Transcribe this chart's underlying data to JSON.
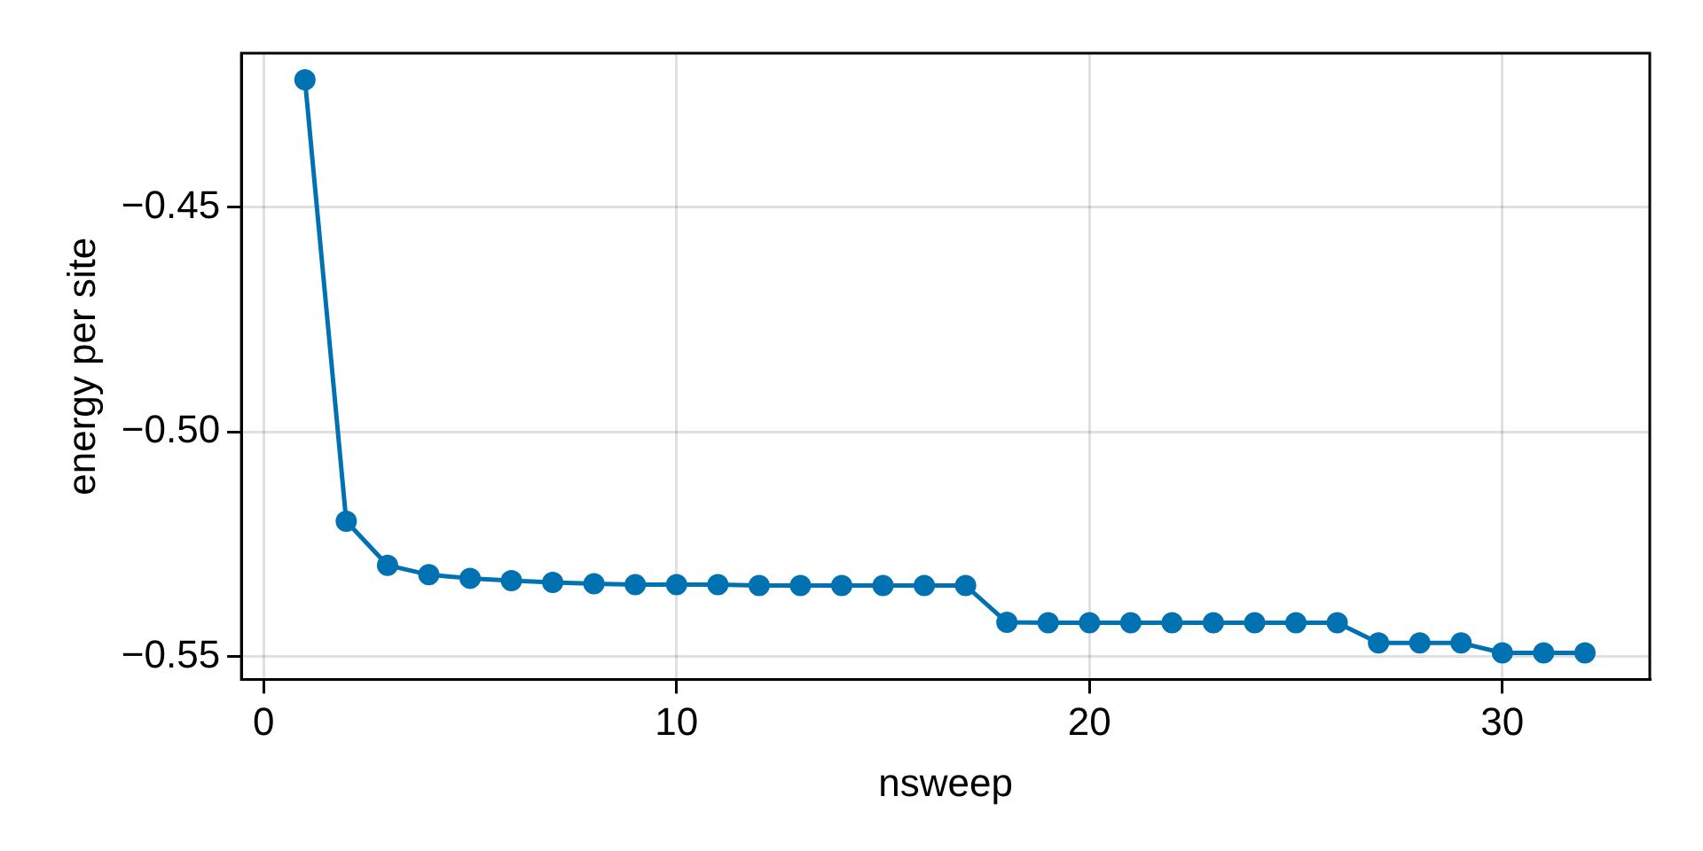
{
  "chart_data": {
    "type": "line",
    "xlabel": "nsweep",
    "ylabel": "energy per site",
    "x": [
      1,
      2,
      3,
      4,
      5,
      6,
      7,
      8,
      9,
      10,
      11,
      12,
      13,
      14,
      15,
      16,
      17,
      18,
      19,
      20,
      21,
      22,
      23,
      24,
      25,
      26,
      27,
      28,
      29,
      30,
      31,
      32
    ],
    "series": [
      {
        "color": "#0072b2",
        "values": [
          -0.4216,
          -0.5199,
          -0.5297,
          -0.5318,
          -0.5326,
          -0.5331,
          -0.5335,
          -0.5338,
          -0.534,
          -0.534,
          -0.534,
          -0.5342,
          -0.5342,
          -0.5342,
          -0.5342,
          -0.5342,
          -0.5342,
          -0.5424,
          -0.5425,
          -0.5425,
          -0.5425,
          -0.5425,
          -0.5425,
          -0.5425,
          -0.5425,
          -0.5425,
          -0.547,
          -0.547,
          -0.547,
          -0.5492,
          -0.5492,
          -0.5492
        ]
      }
    ],
    "xlim": [
      -0.54,
      33.57
    ],
    "xticks": [
      0,
      10,
      20,
      30
    ],
    "ylim": [
      -0.5551,
      -0.4157
    ],
    "yticks": [
      {
        "value": -0.55,
        "label": "−0.55"
      },
      {
        "value": -0.5,
        "label": "−0.50"
      },
      {
        "value": -0.45,
        "label": "−0.45"
      }
    ],
    "grid": true,
    "legend": false,
    "marker": "circle",
    "line_style": "solid"
  }
}
